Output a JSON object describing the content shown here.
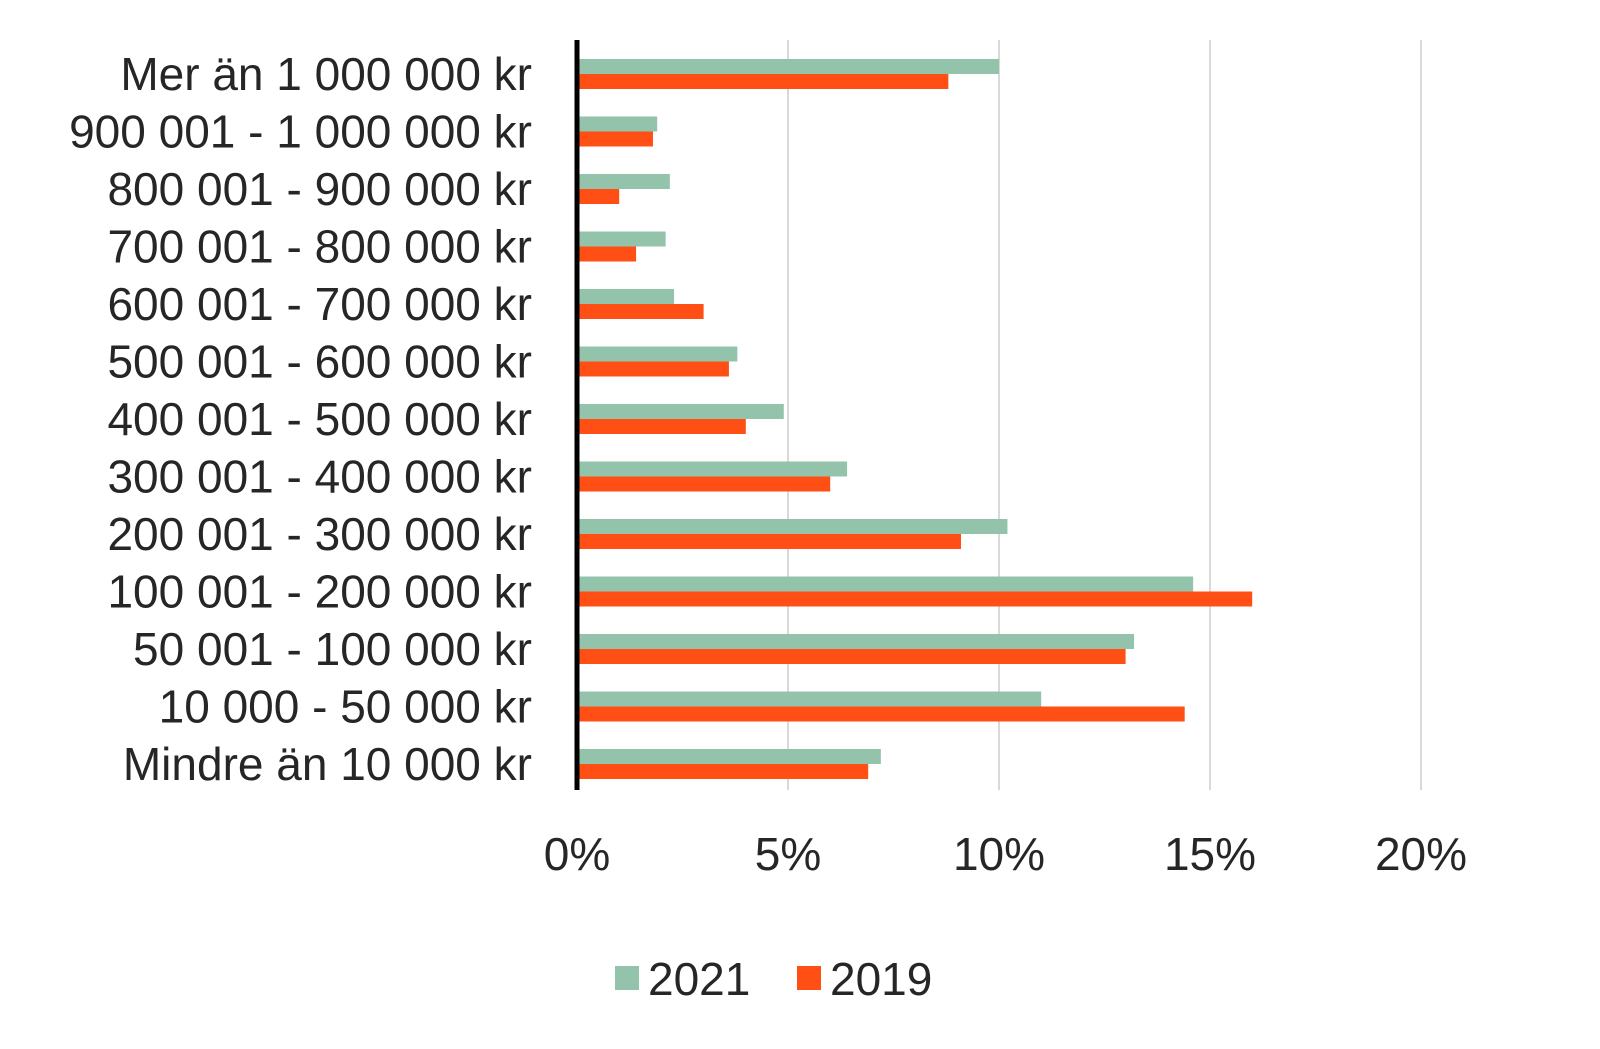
{
  "chart_data": {
    "type": "bar",
    "orientation": "horizontal",
    "categories": [
      "Mer än 1 000 000 kr",
      "900 001 - 1 000 000 kr",
      "800 001 - 900 000 kr",
      "700 001 - 800 000 kr",
      "600 001 - 700 000 kr",
      "500 001 - 600 000 kr",
      "400 001 - 500 000 kr",
      "300 001 - 400 000 kr",
      "200 001 - 300 000 kr",
      "100 001 - 200 000 kr",
      "50 001 - 100 000 kr",
      "10 000 - 50 000 kr",
      "Mindre än 10 000 kr"
    ],
    "series": [
      {
        "name": "2021",
        "color": "#93c4ab",
        "values": [
          10.0,
          1.9,
          2.2,
          2.1,
          2.3,
          3.8,
          4.9,
          6.4,
          10.2,
          14.6,
          13.2,
          11.0,
          7.2
        ]
      },
      {
        "name": "2019",
        "color": "#ff4f14",
        "values": [
          8.8,
          1.8,
          1.0,
          1.4,
          3.0,
          3.6,
          4.0,
          6.0,
          9.1,
          16.0,
          13.0,
          14.4,
          6.9
        ]
      }
    ],
    "x_ticks": [
      "0%",
      "5%",
      "10%",
      "15%",
      "20%"
    ],
    "xlim": [
      0,
      20
    ],
    "title": "",
    "xlabel": "",
    "ylabel": "",
    "grid": "vertical",
    "legend": "bottom"
  }
}
